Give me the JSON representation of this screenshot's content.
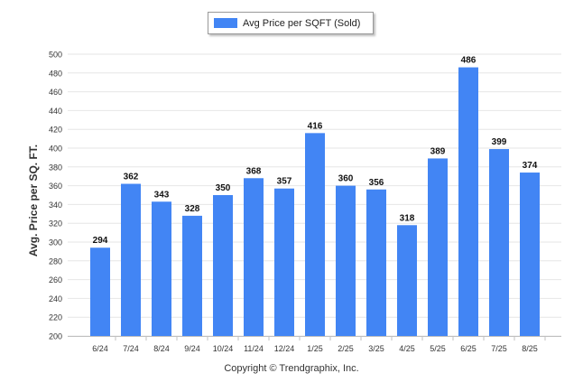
{
  "chart_data": {
    "type": "bar",
    "categories": [
      "6/24",
      "7/24",
      "8/24",
      "9/24",
      "10/24",
      "11/24",
      "12/24",
      "1/25",
      "2/25",
      "3/25",
      "4/25",
      "5/25",
      "6/25",
      "7/25",
      "8/25"
    ],
    "series": [
      {
        "name": "Avg Price per SQFT (Sold)",
        "values": [
          294,
          362,
          343,
          328,
          350,
          368,
          357,
          416,
          360,
          356,
          318,
          389,
          486,
          399,
          374
        ]
      }
    ],
    "ylabel": "Avg. Price per SQ. FT.",
    "xlabel": "",
    "ylim": [
      200,
      500
    ],
    "yticks": [
      200,
      220,
      240,
      260,
      280,
      300,
      320,
      340,
      360,
      380,
      400,
      420,
      440,
      460,
      480,
      500
    ],
    "grid": true,
    "legend_position": "top-center",
    "data_labels": true,
    "colors": {
      "bar": "#4285f4",
      "grid": "#e6e6e6"
    }
  },
  "footer": {
    "copyright": "Copyright © Trendgraphix, Inc."
  }
}
